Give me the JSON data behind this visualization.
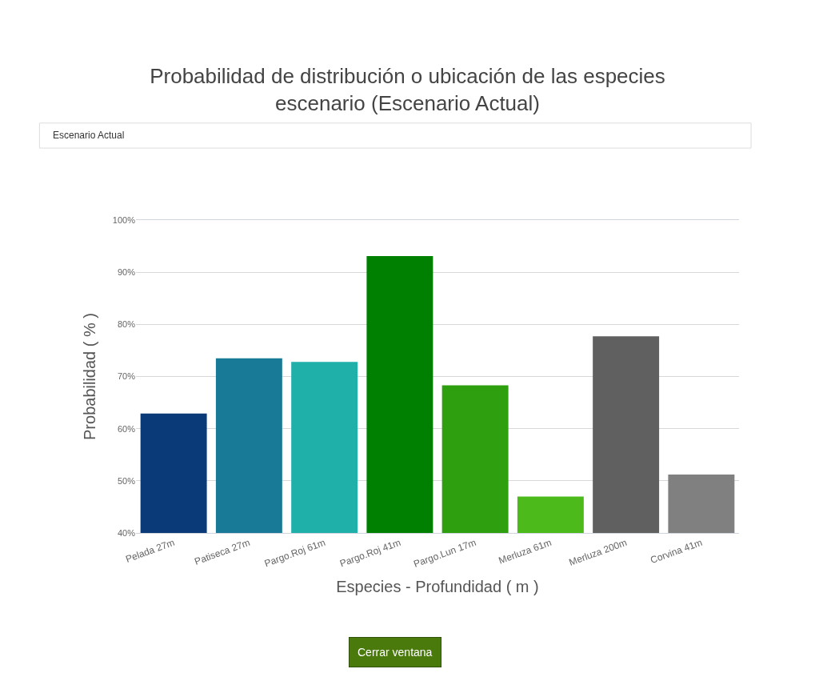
{
  "chart_data": {
    "type": "bar",
    "title": "Probabilidad de distribución o ubicación de las especies\nescenario (Escenario Actual)",
    "xlabel": "Especies - Profundidad ( m )",
    "ylabel": "Probabilidad ( % )",
    "categories": [
      "Pelada 27m",
      "Patiseca 27m",
      "Pargo.Roj 61m",
      "Pargo.Roj 41m",
      "Pargo.Lun 17m",
      "Merluza 61m",
      "Merluza 200m",
      "Corvina 41m"
    ],
    "values": [
      62.9,
      73.5,
      72.8,
      93.1,
      68.3,
      47.0,
      77.7,
      51.2
    ],
    "colors": [
      "#0b3a78",
      "#187a96",
      "#20b0aa",
      "#008000",
      "#2ea010",
      "#4cba1a",
      "#606060",
      "#808080"
    ],
    "ylim": [
      40,
      100
    ],
    "yticks": [
      {
        "value": 40,
        "label": "40%"
      },
      {
        "value": 50,
        "label": "50%"
      },
      {
        "value": 60,
        "label": "60%"
      },
      {
        "value": 70,
        "label": "70%"
      },
      {
        "value": 80,
        "label": "80%"
      },
      {
        "value": 90,
        "label": "90%"
      },
      {
        "value": 100,
        "label": "100%"
      }
    ],
    "grid": "y",
    "annotations": [
      "Escenario Actual",
      "Cerrar ventana"
    ]
  }
}
